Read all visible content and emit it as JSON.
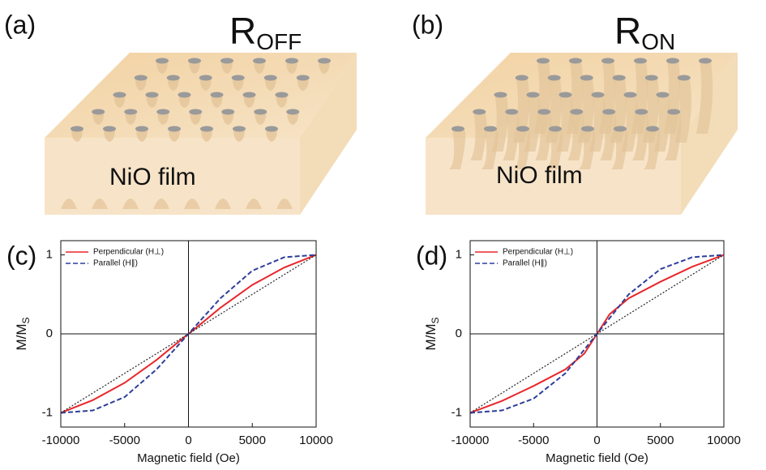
{
  "panels": [
    {
      "label": "(a)",
      "title": "R",
      "title_sub": "OFF",
      "film": "NiO film"
    },
    {
      "label": "(b)",
      "title": "R",
      "title_sub": "ON",
      "film": "NiO film"
    }
  ],
  "chart_data": [
    {
      "type": "line",
      "label": "(c)",
      "xlabel": "Magnetic field (Oe)",
      "ylabel": "M/M",
      "ylabel_sub": "S",
      "x": [
        -10000,
        -7500,
        -5000,
        -2500,
        -1000,
        0,
        1000,
        2500,
        5000,
        7500,
        10000
      ],
      "xlim": [
        -10000,
        10000
      ],
      "xticks": [
        -10000,
        -5000,
        0,
        5000,
        10000
      ],
      "ylim": [
        -1.18,
        1.18
      ],
      "yticks": [
        -1,
        0,
        1
      ],
      "zero_lines": true,
      "series": [
        {
          "name": "Perpendicular (H⊥)",
          "color": "#e8272a",
          "dash": "solid",
          "values": [
            -1,
            -0.84,
            -0.62,
            -0.33,
            -0.13,
            0,
            0.13,
            0.33,
            0.62,
            0.84,
            1
          ]
        },
        {
          "name": "Parallel (H∥)",
          "color": "#2e3f9a",
          "dash": "dashed",
          "values": [
            -1,
            -0.97,
            -0.8,
            -0.45,
            -0.18,
            0,
            0.18,
            0.45,
            0.8,
            0.97,
            1
          ]
        },
        {
          "color": "#222222",
          "dash": "dotted",
          "values": [
            -1,
            -0.75,
            -0.5,
            -0.25,
            -0.1,
            0,
            0.1,
            0.25,
            0.5,
            0.75,
            1
          ]
        }
      ]
    },
    {
      "type": "line",
      "label": "(d)",
      "xlabel": "Magnetic field (Oe)",
      "ylabel": "M/M",
      "ylabel_sub": "S",
      "x": [
        -10000,
        -7500,
        -5000,
        -2500,
        -1000,
        0,
        1000,
        2500,
        5000,
        7500,
        10000
      ],
      "xlim": [
        -10000,
        10000
      ],
      "xticks": [
        -10000,
        -5000,
        0,
        5000,
        10000
      ],
      "ylim": [
        -1.18,
        1.18
      ],
      "yticks": [
        -1,
        0,
        1
      ],
      "zero_lines": true,
      "series": [
        {
          "name": "Perpendicular (H⊥)",
          "color": "#e8272a",
          "dash": "solid",
          "values": [
            -1,
            -0.85,
            -0.66,
            -0.45,
            -0.25,
            0,
            0.25,
            0.45,
            0.66,
            0.85,
            1
          ]
        },
        {
          "name": "Parallel (H∥)",
          "color": "#2e3f9a",
          "dash": "dashed",
          "values": [
            -1,
            -0.97,
            -0.82,
            -0.5,
            -0.2,
            0,
            0.2,
            0.5,
            0.82,
            0.97,
            1
          ]
        },
        {
          "color": "#222222",
          "dash": "dotted",
          "values": [
            -1,
            -0.75,
            -0.5,
            -0.25,
            -0.1,
            0,
            0.1,
            0.25,
            0.5,
            0.75,
            1
          ]
        }
      ]
    }
  ]
}
